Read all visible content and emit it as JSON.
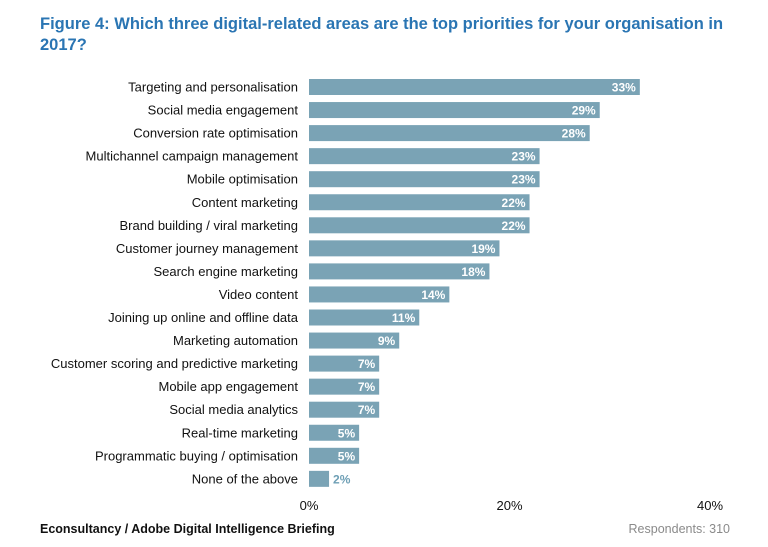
{
  "title": "Figure 4: Which three digital-related areas are the top priorities for your organisation in 2017?",
  "source": "Econsultancy / Adobe Digital Intelligence Briefing",
  "respondents": "Respondents: 310",
  "colors": {
    "bar": "#7aa3b5",
    "title": "#2a75b3"
  },
  "chart_data": {
    "type": "bar",
    "orientation": "horizontal",
    "categories": [
      "Targeting and personalisation",
      "Social media engagement",
      "Conversion rate optimisation",
      "Multichannel campaign management",
      "Mobile optimisation",
      "Content marketing",
      "Brand building / viral marketing",
      "Customer journey management",
      "Search engine marketing",
      "Video content",
      "Joining up online and offline data",
      "Marketing automation",
      "Customer scoring and predictive marketing",
      "Mobile app engagement",
      "Social media analytics",
      "Real-time marketing",
      "Programmatic buying / optimisation",
      "None of the above"
    ],
    "values": [
      33,
      29,
      28,
      23,
      23,
      22,
      22,
      19,
      18,
      14,
      11,
      9,
      7,
      7,
      7,
      5,
      5,
      2
    ],
    "value_suffix": "%",
    "xlim": [
      0,
      40
    ],
    "xticks": [
      "0%",
      "20%",
      "40%"
    ],
    "xtick_values": [
      0,
      20,
      40
    ],
    "grid": false,
    "legend": "none"
  }
}
